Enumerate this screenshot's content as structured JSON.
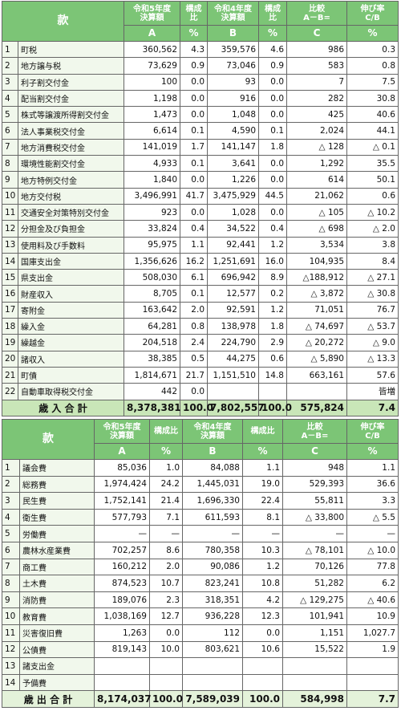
{
  "revenue": {
    "header": {
      "item": "款",
      "columns": [
        {
          "top": "令和5年度\n決算額",
          "bottom": "A"
        },
        {
          "top": "構成比",
          "bottom": "%"
        },
        {
          "top": "令和4年度\n決算額",
          "bottom": "B"
        },
        {
          "top": "構成比",
          "bottom": "%"
        },
        {
          "top": "比較\nA－B=",
          "bottom": "C"
        },
        {
          "top": "伸び率\nC/B",
          "bottom": "%"
        }
      ]
    },
    "rows": [
      [
        "1",
        "町税",
        "360,562",
        "4.3",
        "359,576",
        "4.6",
        "986",
        "0.3"
      ],
      [
        "2",
        "地方譲与税",
        "73,629",
        "0.9",
        "73,046",
        "0.9",
        "583",
        "0.8"
      ],
      [
        "3",
        "利子割交付金",
        "100",
        "0.0",
        "93",
        "0.0",
        "7",
        "7.5"
      ],
      [
        "4",
        "配当割交付金",
        "1,198",
        "0.0",
        "916",
        "0.0",
        "282",
        "30.8"
      ],
      [
        "5",
        "株式等譲渡所得割交付金",
        "1,473",
        "0.0",
        "1,048",
        "0.0",
        "425",
        "40.6"
      ],
      [
        "6",
        "法人事業税交付金",
        "6,614",
        "0.1",
        "4,590",
        "0.1",
        "2,024",
        "44.1"
      ],
      [
        "7",
        "地方消費税交付金",
        "141,019",
        "1.7",
        "141,147",
        "1.8",
        "△ 128",
        "△ 0.1"
      ],
      [
        "8",
        "環境性能割交付金",
        "4,933",
        "0.1",
        "3,641",
        "0.0",
        "1,292",
        "35.5"
      ],
      [
        "9",
        "地方特例交付金",
        "1,840",
        "0.0",
        "1,226",
        "0.0",
        "614",
        "50.1"
      ],
      [
        "10",
        "地方交付税",
        "3,496,991",
        "41.7",
        "3,475,929",
        "44.5",
        "21,062",
        "0.6"
      ],
      [
        "11",
        "交通安全対策特別交付金",
        "923",
        "0.0",
        "1,028",
        "0.0",
        "△ 105",
        "△ 10.2"
      ],
      [
        "12",
        "分担金及び負担金",
        "33,824",
        "0.4",
        "34,522",
        "0.4",
        "△ 698",
        "△ 2.0"
      ],
      [
        "13",
        "使用料及び手数料",
        "95,975",
        "1.1",
        "92,441",
        "1.2",
        "3,534",
        "3.8"
      ],
      [
        "14",
        "国庫支出金",
        "1,356,626",
        "16.2",
        "1,251,691",
        "16.0",
        "104,935",
        "8.4"
      ],
      [
        "15",
        "県支出金",
        "508,030",
        "6.1",
        "696,942",
        "8.9",
        "△188,912",
        "△ 27.1"
      ],
      [
        "16",
        "財産収入",
        "8,705",
        "0.1",
        "12,577",
        "0.2",
        "△ 3,872",
        "△ 30.8"
      ],
      [
        "17",
        "寄附金",
        "163,642",
        "2.0",
        "92,591",
        "1.2",
        "71,051",
        "76.7"
      ],
      [
        "18",
        "繰入金",
        "64,281",
        "0.8",
        "138,978",
        "1.8",
        "△ 74,697",
        "△ 53.7"
      ],
      [
        "19",
        "繰越金",
        "204,518",
        "2.4",
        "224,790",
        "2.9",
        "△ 20,272",
        "△ 9.0"
      ],
      [
        "20",
        "諸収入",
        "38,385",
        "0.5",
        "44,275",
        "0.6",
        "△ 5,890",
        "△ 13.3"
      ],
      [
        "21",
        "町債",
        "1,814,671",
        "21.7",
        "1,151,510",
        "14.8",
        "663,161",
        "57.6"
      ],
      [
        "22",
        "自動車取得税交付金",
        "442",
        "0.0",
        null,
        null,
        null,
        "皆増"
      ]
    ],
    "total": {
      "label": "歳 入 合 計",
      "values": [
        "8,378,381",
        "100.0",
        "7,802,557",
        "100.0",
        "575,824",
        "7.4"
      ]
    }
  },
  "expenditure": {
    "header": {
      "item": "款",
      "columns": [
        {
          "top": "令和5年度\n決算額",
          "bottom": "A"
        },
        {
          "top": "構成比",
          "bottom": "%"
        },
        {
          "top": "令和4年度\n決算額",
          "bottom": "B"
        },
        {
          "top": "構成比",
          "bottom": "%"
        },
        {
          "top": "比較\nA－B=",
          "bottom": "C"
        },
        {
          "top": "伸び率\nC/B",
          "bottom": "%"
        }
      ]
    },
    "rows": [
      [
        "1",
        "議会費",
        "85,036",
        "1.0",
        "84,088",
        "1.1",
        "948",
        "1.1"
      ],
      [
        "2",
        "総務費",
        "1,974,424",
        "24.2",
        "1,445,031",
        "19.0",
        "529,393",
        "36.6"
      ],
      [
        "3",
        "民生費",
        "1,752,141",
        "21.4",
        "1,696,330",
        "22.4",
        "55,811",
        "3.3"
      ],
      [
        "4",
        "衛生費",
        "577,793",
        "7.1",
        "611,593",
        "8.1",
        "△ 33,800",
        "△ 5.5"
      ],
      [
        "5",
        "労働費",
        "—",
        "—",
        "—",
        "—",
        "—",
        "—"
      ],
      [
        "6",
        "農林水産業費",
        "702,257",
        "8.6",
        "780,358",
        "10.3",
        "△ 78,101",
        "△ 10.0"
      ],
      [
        "7",
        "商工費",
        "160,212",
        "2.0",
        "90,086",
        "1.2",
        "70,126",
        "77.8"
      ],
      [
        "8",
        "土木費",
        "874,523",
        "10.7",
        "823,241",
        "10.8",
        "51,282",
        "6.2"
      ],
      [
        "9",
        "消防費",
        "189,076",
        "2.3",
        "318,351",
        "4.2",
        "△ 129,275",
        "△ 40.6"
      ],
      [
        "10",
        "教育費",
        "1,038,169",
        "12.7",
        "936,228",
        "12.3",
        "101,941",
        "10.9"
      ],
      [
        "11",
        "災害復旧費",
        "1,263",
        "0.0",
        "112",
        "0.0",
        "1,151",
        "1,027.7"
      ],
      [
        "12",
        "公債費",
        "819,143",
        "10.0",
        "803,621",
        "10.6",
        "15,522",
        "1.9"
      ],
      [
        "13",
        "諸支出金",
        null,
        null,
        null,
        null,
        null,
        null
      ],
      [
        "14",
        "予備費",
        null,
        null,
        null,
        null,
        null,
        null
      ]
    ],
    "total": {
      "label": "歳 出 合 計",
      "values": [
        "8,174,037",
        "100.0",
        "7,589,039",
        "100.0",
        "584,998",
        "7.7"
      ]
    }
  }
}
